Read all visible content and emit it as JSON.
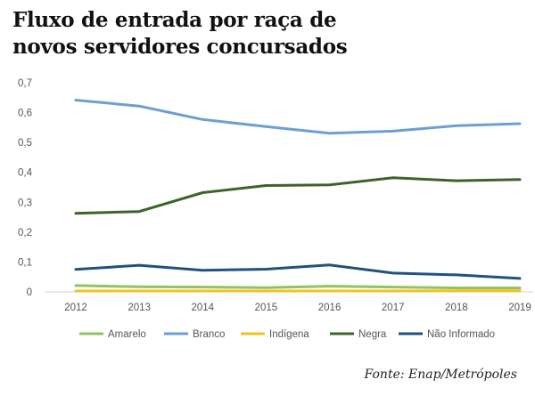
{
  "title_lines": [
    "Fluxo de entrada por raça de",
    "novos servidores concursados"
  ],
  "source": "Fonte: Enap/Metrópoles",
  "chart_data": {
    "type": "line",
    "x": [
      "2012",
      "2013",
      "2014",
      "2015",
      "2016",
      "2017",
      "2018",
      "2019"
    ],
    "ylim": [
      0,
      0.7
    ],
    "yticks": [
      "0",
      "0,1",
      "0,2",
      "0,3",
      "0,4",
      "0,5",
      "0,6",
      "0,7"
    ],
    "grid": false,
    "legend_position": "bottom",
    "series": [
      {
        "name": "Amarelo",
        "color": "#8fc365",
        "values": [
          0.021,
          0.017,
          0.016,
          0.014,
          0.019,
          0.016,
          0.013,
          0.013
        ]
      },
      {
        "name": "Branco",
        "color": "#6b9fd4",
        "values": [
          0.642,
          0.622,
          0.577,
          0.553,
          0.531,
          0.538,
          0.556,
          0.563
        ]
      },
      {
        "name": "Indígena",
        "color": "#f0c419",
        "values": [
          0.003,
          0.003,
          0.003,
          0.003,
          0.003,
          0.003,
          0.004,
          0.004
        ]
      },
      {
        "name": "Negra",
        "color": "#3c6427",
        "values": [
          0.263,
          0.269,
          0.332,
          0.356,
          0.358,
          0.382,
          0.372,
          0.376
        ]
      },
      {
        "name": "Não Informado",
        "color": "#20527f",
        "values": [
          0.075,
          0.089,
          0.072,
          0.076,
          0.09,
          0.063,
          0.057,
          0.045
        ]
      }
    ]
  }
}
